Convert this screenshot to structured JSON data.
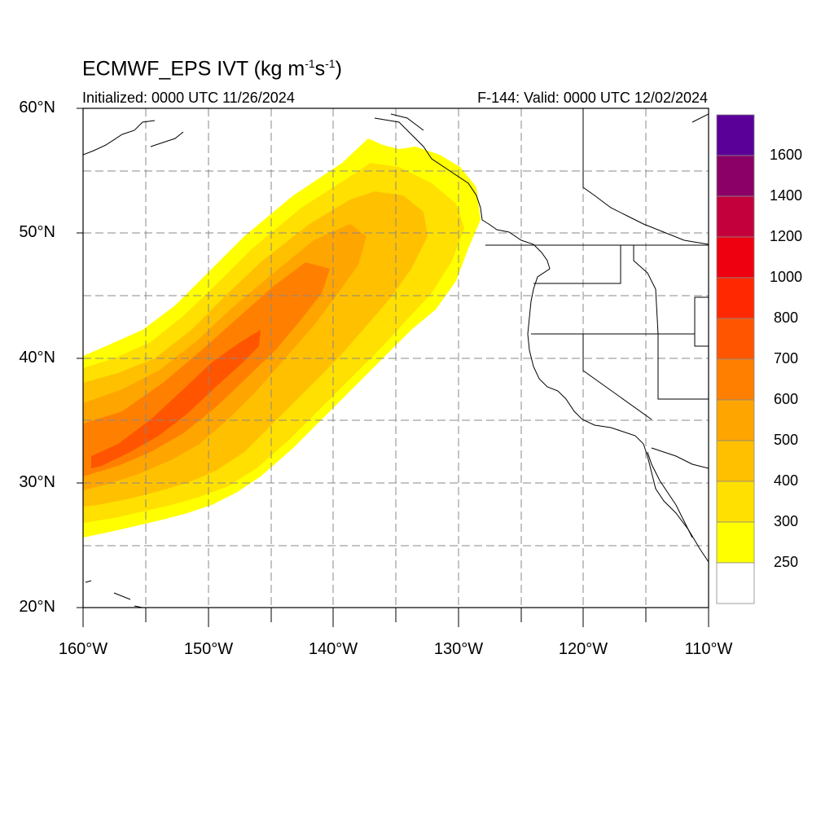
{
  "title": {
    "main": "ECMWF_EPS IVT (kg m",
    "sup1": "-1",
    "mid": "s",
    "sup2": "-1",
    "end": ")"
  },
  "subtitle_left": "Initialized: 0000 UTC 11/26/2024",
  "subtitle_right": "F-144: Valid: 0000 UTC 12/02/2024",
  "lat_ticks": [
    "60°N",
    "50°N",
    "40°N",
    "30°N",
    "20°N"
  ],
  "lon_ticks": [
    "160°W",
    "150°W",
    "140°W",
    "130°W",
    "120°W",
    "110°W"
  ],
  "colorbar": {
    "labels": [
      "1600",
      "1400",
      "1200",
      "1000",
      "800",
      "700",
      "600",
      "500",
      "400",
      "300",
      "250"
    ],
    "colors_top_to_bottom": [
      "#5a0099",
      "#8a0066",
      "#c4003c",
      "#ee0010",
      "#ff2800",
      "#ff5500",
      "#ff8000",
      "#ffa500",
      "#ffc000",
      "#ffe000",
      "#ffff00",
      "#ffffff"
    ]
  },
  "chart_data": {
    "type": "heatmap",
    "title": "ECMWF_EPS IVT (kg m-1 s-1)",
    "xlabel": "",
    "ylabel": "",
    "xlim": [
      -160,
      -110
    ],
    "ylim": [
      20,
      60
    ],
    "levels": [
      250,
      300,
      400,
      500,
      600,
      700,
      800,
      1000,
      1200,
      1400,
      1600
    ],
    "feature": "atmospheric river extending from ~30N 160W northeast to ~52N 128W, peak 700-800 near 32N 157W to 42N 145W"
  }
}
